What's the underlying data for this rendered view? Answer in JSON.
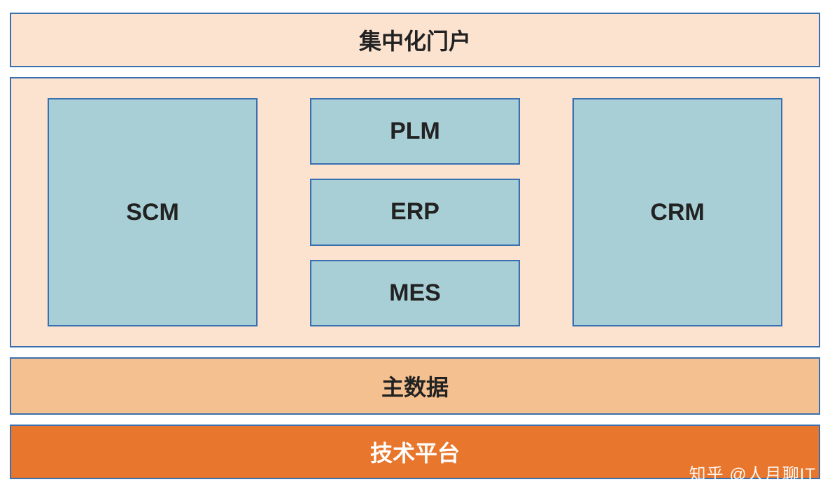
{
  "diagram": {
    "type": "architecture-layers",
    "background_color": "#ffffff",
    "font_family": "Microsoft YaHei",
    "layers": {
      "portal": {
        "label": "集中化门户",
        "bg_color": "#fbe3d0",
        "border_color": "#3a6fb0",
        "border_width": 2,
        "text_color": "#222222",
        "font_size": 32,
        "font_weight": "bold"
      },
      "systems": {
        "container_bg": "#fbe3d0",
        "container_border_color": "#3a6fb0",
        "container_border_width": 2,
        "box_bg": "#a9cfd6",
        "box_border_color": "#3a6fb0",
        "box_border_width": 2,
        "box_text_color": "#222222",
        "box_font_size": 34,
        "box_font_weight": "bold",
        "left": "SCM",
        "middle": [
          "PLM",
          "ERP",
          "MES"
        ],
        "right": "CRM"
      },
      "master_data": {
        "label": "主数据",
        "bg_color": "#f5c08f",
        "border_color": "#3a6fb0",
        "border_width": 2,
        "text_color": "#222222",
        "font_size": 32,
        "font_weight": "bold"
      },
      "platform": {
        "label": "技术平台",
        "bg_color": "#e8762c",
        "border_color": "#3a6fb0",
        "border_width": 2,
        "text_color": "#ffffff",
        "font_size": 32,
        "font_weight": "bold"
      }
    },
    "watermark": "知乎 @人月聊IT"
  }
}
